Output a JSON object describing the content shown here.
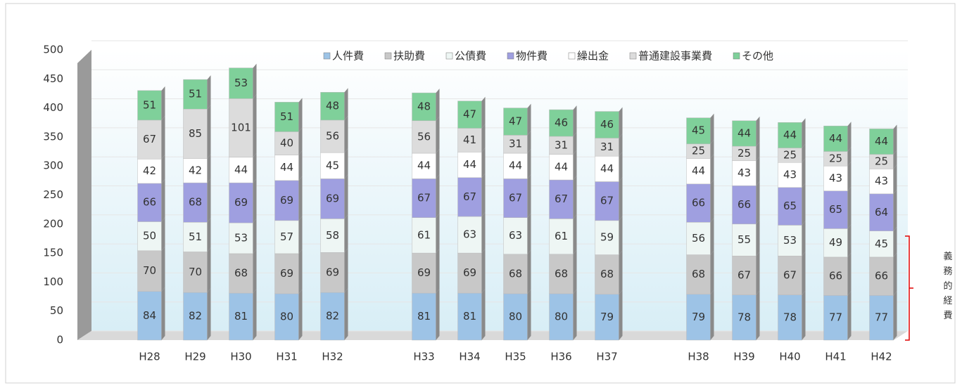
{
  "chart_data": {
    "type": "bar",
    "stacked": true,
    "categories": [
      "H28",
      "H29",
      "H30",
      "H31",
      "H32",
      null,
      "H33",
      "H34",
      "H35",
      "H36",
      "H37",
      null,
      "H38",
      "H39",
      "H40",
      "H41",
      "H42"
    ],
    "series": [
      {
        "name": "人件費",
        "color": "#9dc3e6",
        "values": [
          84,
          82,
          81,
          80,
          82,
          null,
          81,
          81,
          80,
          80,
          79,
          null,
          79,
          78,
          78,
          77,
          77
        ]
      },
      {
        "name": "扶助費",
        "color": "#c8c8c8",
        "values": [
          70,
          70,
          68,
          69,
          69,
          null,
          69,
          69,
          68,
          68,
          68,
          null,
          68,
          67,
          67,
          66,
          66
        ]
      },
      {
        "name": "公債費",
        "color": "#eef6f4",
        "values": [
          50,
          51,
          53,
          57,
          58,
          null,
          61,
          63,
          63,
          61,
          59,
          null,
          56,
          55,
          53,
          49,
          45
        ]
      },
      {
        "name": "物件費",
        "color": "#9f9fe0",
        "values": [
          66,
          68,
          69,
          69,
          69,
          null,
          67,
          67,
          67,
          67,
          67,
          null,
          66,
          66,
          65,
          65,
          64
        ]
      },
      {
        "name": "繰出金",
        "color": "#ffffff",
        "values": [
          42,
          42,
          44,
          44,
          45,
          null,
          44,
          44,
          44,
          44,
          44,
          null,
          44,
          43,
          43,
          43,
          43
        ]
      },
      {
        "name": "普通建設事業費",
        "color": "#dcdcdc",
        "values": [
          67,
          85,
          101,
          40,
          56,
          null,
          56,
          41,
          31,
          31,
          31,
          null,
          25,
          25,
          25,
          25,
          25
        ]
      },
      {
        "name": "その他",
        "color": "#7fd09a",
        "values": [
          51,
          51,
          53,
          51,
          48,
          null,
          48,
          47,
          47,
          46,
          46,
          null,
          45,
          44,
          44,
          44,
          44
        ]
      }
    ],
    "ylim": [
      0,
      500
    ],
    "yticks": [
      0,
      50,
      100,
      150,
      200,
      250,
      300,
      350,
      400,
      450,
      500
    ],
    "legend": "top",
    "annotation": "義務的経費"
  }
}
